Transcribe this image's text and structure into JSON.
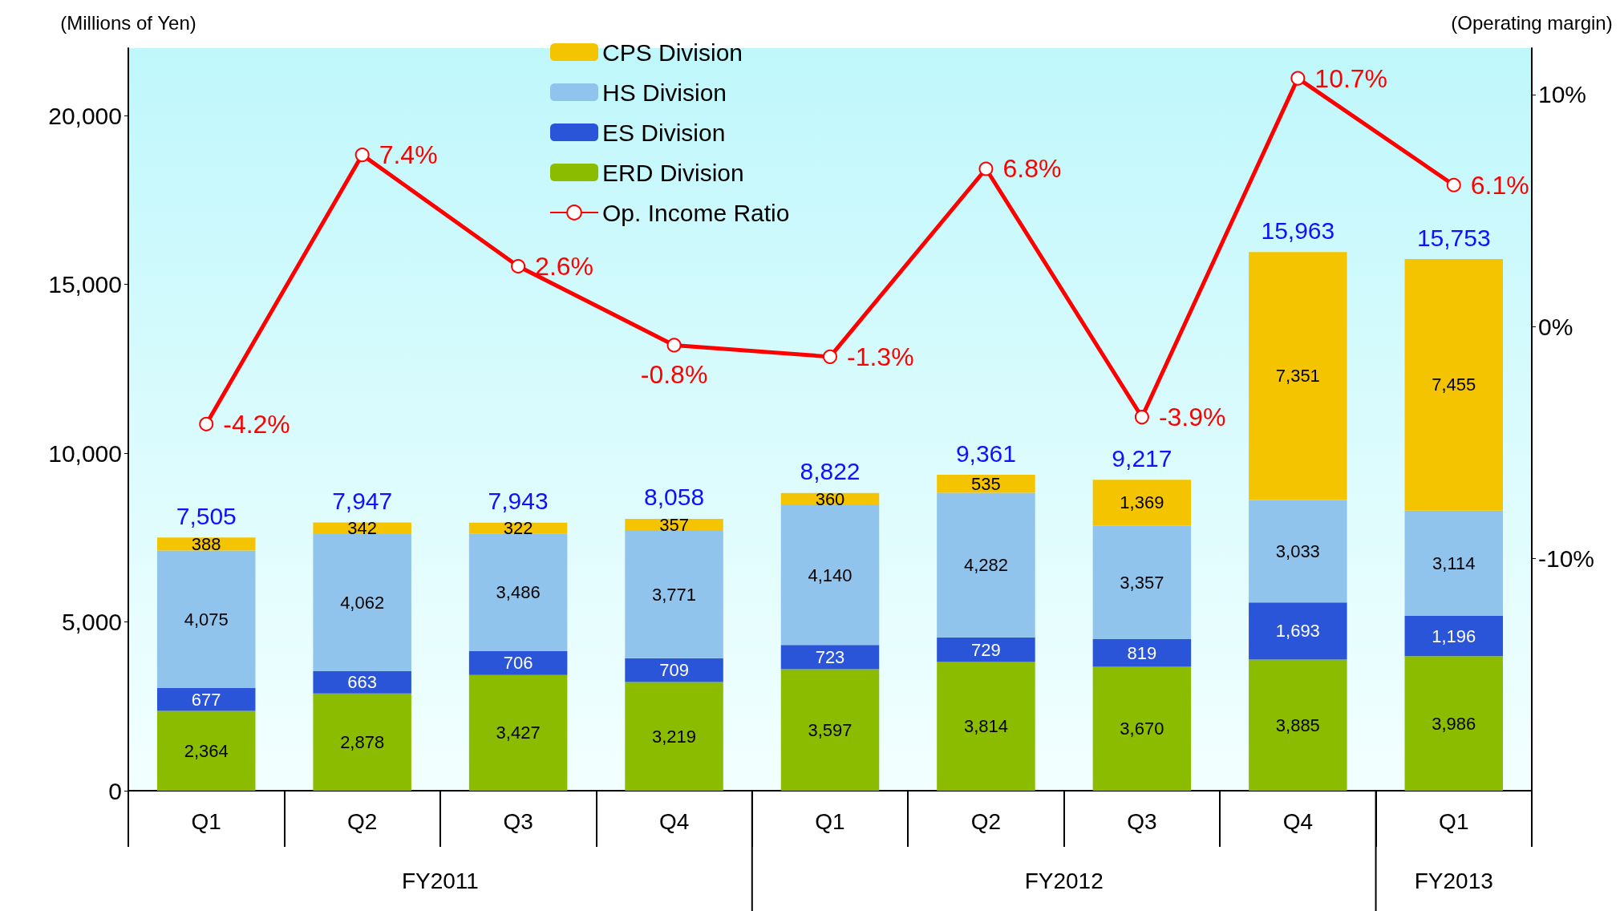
{
  "chart_data": {
    "type": "bar",
    "stacked": true,
    "ylabel": "(Millions of Yen)",
    "y2label": "(Operating margin)",
    "categories": [
      "Q1",
      "Q2",
      "Q3",
      "Q4",
      "Q1",
      "Q2",
      "Q3",
      "Q4",
      "Q1"
    ],
    "annotations": [
      "FY2011",
      "FY2012",
      "FY2013"
    ],
    "series": [
      {
        "name": "ERD Division",
        "color": "#8cbc00",
        "values": [
          2364,
          2878,
          3427,
          3219,
          3597,
          3814,
          3670,
          3885,
          3986
        ],
        "value_labels": [
          "2,364",
          "2,878",
          "3,427",
          "3,219",
          "3,597",
          "3,814",
          "3,670",
          "3,885",
          "3,986"
        ]
      },
      {
        "name": "ES Division",
        "color": "#2a55d8",
        "values": [
          677,
          663,
          706,
          709,
          723,
          729,
          819,
          1693,
          1196
        ],
        "value_labels": [
          "677",
          "663",
          "706",
          "709",
          "723",
          "729",
          "819",
          "1,693",
          "1,196"
        ]
      },
      {
        "name": "HS Division",
        "color": "#90c4ec",
        "values": [
          4075,
          4062,
          3486,
          3771,
          4140,
          4282,
          3357,
          3033,
          3114
        ],
        "value_labels": [
          "4,075",
          "4,062",
          "3,486",
          "3,771",
          "4,140",
          "4,282",
          "3,357",
          "3,033",
          "3,114"
        ]
      },
      {
        "name": "CPS Division",
        "color": "#f5c400",
        "values": [
          388,
          342,
          322,
          357,
          360,
          535,
          1369,
          7351,
          7455
        ],
        "value_labels": [
          "388",
          "342",
          "322",
          "357",
          "360",
          "535",
          "1,369",
          "7,351",
          "7,455"
        ]
      },
      {
        "name": "Op. Income Ratio",
        "type": "line",
        "axis": "y2",
        "color": "#ff0000",
        "marker": "circle",
        "values": [
          -4.2,
          7.4,
          2.6,
          -0.8,
          -1.3,
          6.8,
          -3.9,
          10.7,
          6.1
        ],
        "value_labels": [
          "-4.2%",
          "7.4%",
          "2.6%",
          "-0.8%",
          "-1.3%",
          "6.8%",
          "-3.9%",
          "10.7%",
          "6.1%"
        ]
      }
    ],
    "totals": [
      "7,505",
      "7,947",
      "7,943",
      "8,058",
      "8,822",
      "9,361",
      "9,217",
      "15,963",
      "15,753"
    ],
    "ylim": [
      0,
      22000
    ],
    "yticks": [
      {
        "value": 0,
        "label": "0"
      },
      {
        "value": 5000,
        "label": "5,000"
      },
      {
        "value": 10000,
        "label": "10,000"
      },
      {
        "value": 15000,
        "label": "15,000"
      },
      {
        "value": 20000,
        "label": "20,000"
      }
    ],
    "y2lim": [
      -20,
      12
    ],
    "y2ticks": [
      {
        "value": -10,
        "label": "-10%"
      },
      {
        "value": 0,
        "label": "0%"
      },
      {
        "value": 10,
        "label": "10%"
      }
    ],
    "grid": false,
    "legend": "top"
  }
}
